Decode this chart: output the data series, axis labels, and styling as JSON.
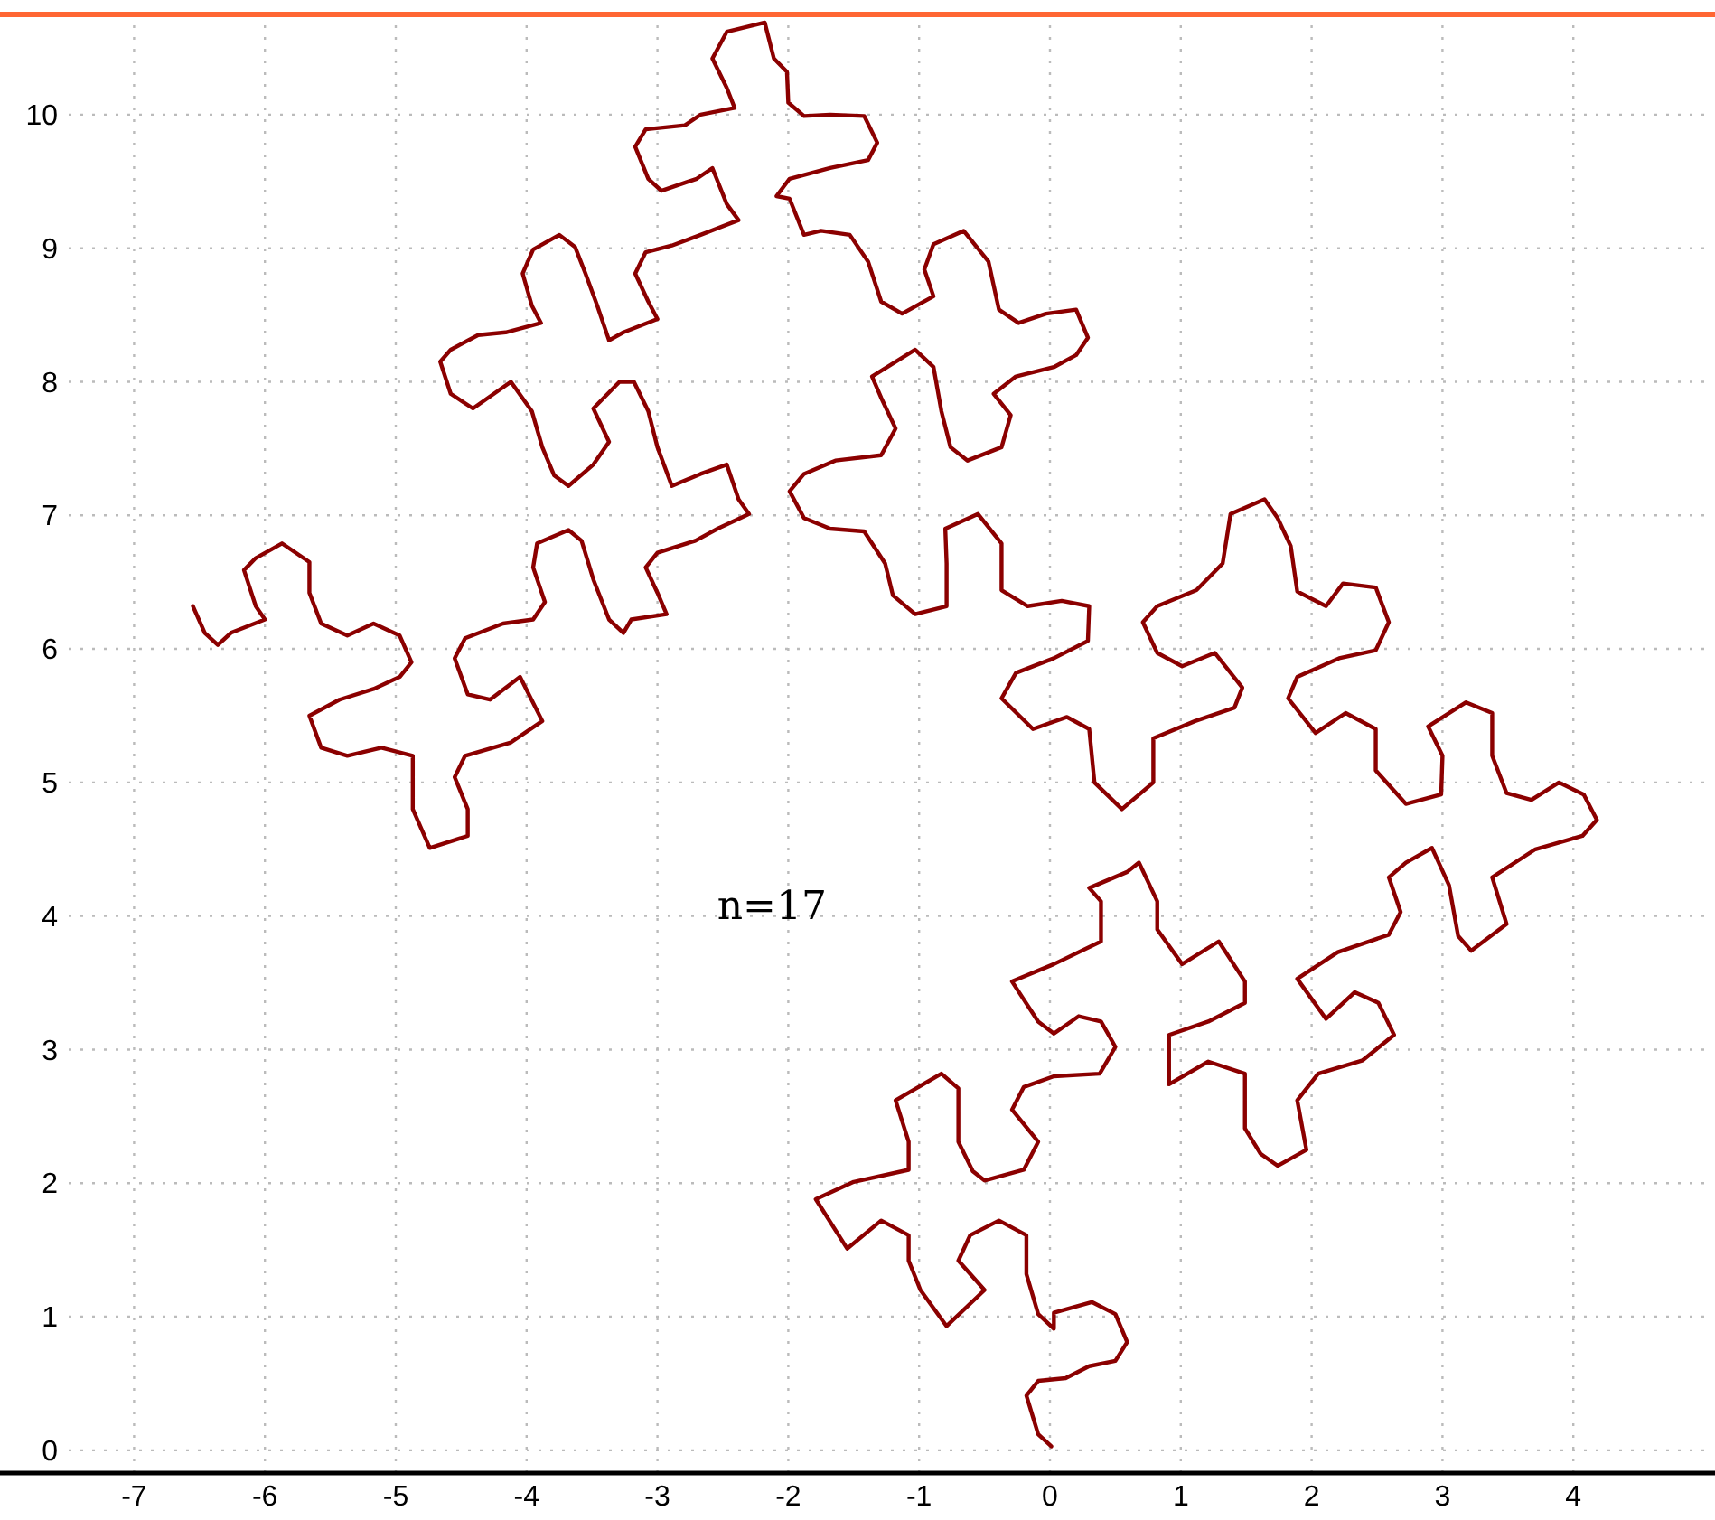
{
  "chart_data": {
    "type": "line",
    "annotations": [
      "n=17"
    ],
    "xlim": [
      -7.5,
      5
    ],
    "ylim": [
      -0.17,
      10.75
    ],
    "xticks": [
      -7,
      -6,
      -5,
      -4,
      -3,
      -2,
      -1,
      0,
      1,
      2,
      3,
      4
    ],
    "yticks": [
      0,
      1,
      2,
      3,
      4,
      5,
      6,
      7,
      8,
      9,
      10
    ],
    "grid": true,
    "series": [
      {
        "color": "#8b0000",
        "x": [
          0.01,
          -0.09,
          -0.18,
          -0.09,
          0.12,
          0.3,
          0.5,
          0.59,
          0.5,
          0.32,
          0.03,
          0.03,
          -0.09,
          -0.18,
          -0.18,
          -0.39,
          -0.61,
          -0.7,
          -0.5,
          -0.79,
          -0.99,
          -1.08,
          -1.08,
          -1.29,
          -1.55,
          -1.79,
          -1.5,
          -1.08,
          -1.08,
          -1.18,
          -0.83,
          -0.7,
          -0.7,
          -0.59,
          -0.5,
          -0.2,
          -0.09,
          -0.29,
          -0.2,
          0.03,
          0.38,
          0.5,
          0.39,
          0.22,
          0.03,
          -0.09,
          -0.29,
          0.03,
          0.39,
          0.39,
          0.3,
          0.59,
          0.68,
          0.82,
          0.82,
          1.01,
          1.29,
          1.49,
          1.49,
          1.21,
          0.91,
          0.91,
          1.21,
          1.49,
          1.49,
          1.61,
          1.74,
          1.96,
          1.89,
          2.05,
          2.39,
          2.63,
          2.51,
          2.33,
          2.11,
          1.89,
          2.2,
          2.59,
          2.68,
          2.59,
          2.72,
          2.92,
          3.05,
          3.12,
          3.22,
          3.49,
          3.38,
          3.71,
          4.07,
          4.18,
          4.08,
          3.89,
          3.68,
          3.49,
          3.38,
          3.38,
          3.18,
          2.89,
          3.0,
          2.99,
          2.72,
          2.49,
          2.49,
          2.26,
          2.03,
          1.82,
          1.89,
          2.21,
          2.49,
          2.59,
          2.49,
          2.24,
          2.11,
          1.89,
          1.84,
          1.74,
          1.64,
          1.38,
          1.32,
          1.12,
          0.82,
          0.71,
          0.82,
          1.01,
          1.26,
          1.47,
          1.41,
          1.11,
          0.79,
          0.79,
          0.55,
          0.34,
          0.3,
          0.13,
          -0.13,
          -0.37,
          -0.26,
          0.03,
          0.29,
          0.3,
          0.09,
          -0.17,
          -0.37,
          -0.37,
          -0.55,
          -0.8,
          -0.79,
          -0.79,
          -1.03,
          -1.2,
          -1.26,
          -1.42,
          -1.68,
          -1.88,
          -1.99,
          -1.88,
          -1.64,
          -1.29,
          -1.18,
          -1.29,
          -1.36,
          -1.03,
          -0.89,
          -0.83,
          -0.76,
          -0.63,
          -0.37,
          -0.3,
          -0.43,
          -0.26,
          0.03,
          0.2,
          0.29,
          0.2,
          -0.03,
          -0.24,
          -0.39,
          -0.47,
          -0.66,
          -0.89,
          -0.96,
          -0.89,
          -1.13,
          -1.29,
          -1.39,
          -1.53,
          -1.75,
          -1.88,
          -1.99,
          -2.09,
          -1.99,
          -1.68,
          -1.39,
          -1.32,
          -1.42,
          -1.68,
          -1.88,
          -2.0,
          -2.01,
          -2.11,
          -2.18,
          -2.47,
          -2.58,
          -2.47,
          -2.41,
          -2.67,
          -2.79,
          -3.09,
          -3.17,
          -3.07,
          -2.97,
          -2.7,
          -2.58,
          -2.47,
          -2.38,
          -2.67,
          -2.89,
          -3.09,
          -3.17,
          -3.07,
          -3.0,
          -3.26,
          -3.37,
          -3.46,
          -3.55,
          -3.63,
          -3.75,
          -3.95,
          -4.03,
          -3.96,
          -3.89,
          -4.16,
          -4.37,
          -4.58,
          -4.66,
          -4.58,
          -4.41,
          -4.12,
          -3.96,
          -3.88,
          -3.79,
          -3.68,
          -3.49,
          -3.37,
          -3.49,
          -3.29,
          -3.18,
          -3.07,
          -3.0,
          -2.89,
          -2.67,
          -2.47,
          -2.38,
          -2.3,
          -2.54,
          -2.71,
          -3.0,
          -3.09,
          -3.0,
          -2.93,
          -3.2,
          -3.26,
          -3.37,
          -3.49,
          -3.58,
          -3.68,
          -3.92,
          -3.95,
          -3.86,
          -3.95,
          -4.18,
          -4.47,
          -4.55,
          -4.45,
          -4.28,
          -4.05,
          -3.88,
          -4.12,
          -4.47,
          -4.55,
          -4.45,
          -4.45,
          -4.74,
          -4.87,
          -4.87,
          -5.11,
          -5.37,
          -5.57,
          -5.66,
          -5.43,
          -5.17,
          -4.97,
          -4.88,
          -4.97,
          -5.17,
          -5.37,
          -5.57,
          -5.66,
          -5.66,
          -5.87,
          -6.07,
          -6.16,
          -6.07,
          -6.0,
          -6.26,
          -6.36,
          -6.46,
          -6.55
        ],
        "values": [
          0.03,
          0.12,
          0.41,
          0.52,
          0.54,
          0.63,
          0.67,
          0.81,
          1.02,
          1.11,
          1.03,
          0.91,
          1.02,
          1.32,
          1.61,
          1.72,
          1.61,
          1.42,
          1.2,
          0.93,
          1.2,
          1.42,
          1.61,
          1.72,
          1.51,
          1.88,
          2.01,
          2.1,
          2.31,
          2.62,
          2.82,
          2.71,
          2.31,
          2.09,
          2.02,
          2.1,
          2.31,
          2.55,
          2.72,
          2.8,
          2.82,
          3.02,
          3.21,
          3.25,
          3.12,
          3.21,
          3.51,
          3.64,
          3.81,
          4.11,
          4.21,
          4.33,
          4.4,
          4.11,
          3.9,
          3.64,
          3.81,
          3.51,
          3.35,
          3.21,
          3.11,
          2.74,
          2.91,
          2.82,
          2.41,
          2.22,
          2.13,
          2.25,
          2.62,
          2.82,
          2.92,
          3.11,
          3.35,
          3.43,
          3.23,
          3.53,
          3.73,
          3.86,
          4.03,
          4.29,
          4.4,
          4.51,
          4.23,
          3.85,
          3.74,
          3.94,
          4.29,
          4.5,
          4.6,
          4.72,
          4.91,
          5.0,
          4.87,
          4.92,
          5.2,
          5.52,
          5.6,
          5.42,
          5.2,
          4.91,
          4.84,
          5.09,
          5.4,
          5.52,
          5.37,
          5.63,
          5.79,
          5.93,
          5.99,
          6.2,
          6.46,
          6.49,
          6.32,
          6.43,
          6.77,
          6.98,
          7.12,
          7.01,
          6.64,
          6.44,
          6.32,
          6.2,
          5.97,
          5.87,
          5.97,
          5.71,
          5.56,
          5.46,
          5.33,
          5.0,
          4.8,
          5.0,
          5.4,
          5.49,
          5.4,
          5.63,
          5.82,
          5.93,
          6.06,
          6.32,
          6.36,
          6.32,
          6.44,
          6.79,
          7.01,
          6.9,
          6.64,
          6.32,
          6.26,
          6.4,
          6.64,
          6.88,
          6.9,
          6.98,
          7.18,
          7.31,
          7.41,
          7.45,
          7.65,
          7.88,
          8.04,
          8.24,
          8.11,
          7.78,
          7.51,
          7.41,
          7.51,
          7.75,
          7.91,
          8.04,
          8.11,
          8.2,
          8.33,
          8.54,
          8.51,
          8.44,
          8.54,
          8.9,
          9.13,
          9.03,
          8.84,
          8.64,
          8.51,
          8.6,
          8.9,
          9.1,
          9.13,
          9.1,
          9.37,
          9.39,
          9.52,
          9.6,
          9.66,
          9.79,
          9.99,
          10.0,
          9.99,
          10.09,
          10.32,
          10.42,
          10.69,
          10.62,
          10.42,
          10.2,
          10.05,
          10.0,
          9.92,
          9.89,
          9.76,
          9.52,
          9.43,
          9.52,
          9.6,
          9.33,
          9.21,
          9.1,
          9.02,
          8.97,
          8.81,
          8.6,
          8.47,
          8.37,
          8.31,
          8.57,
          8.81,
          9.01,
          9.1,
          8.99,
          8.81,
          8.57,
          8.44,
          8.37,
          8.35,
          8.24,
          8.15,
          7.91,
          7.8,
          8.0,
          7.78,
          7.51,
          7.3,
          7.22,
          7.38,
          7.55,
          7.8,
          8.0,
          8.0,
          7.78,
          7.51,
          7.22,
          7.31,
          7.38,
          7.12,
          7.01,
          6.9,
          6.81,
          6.72,
          6.61,
          6.42,
          6.26,
          6.22,
          6.12,
          6.22,
          6.52,
          6.81,
          6.89,
          6.79,
          6.61,
          6.35,
          6.22,
          6.19,
          6.08,
          5.93,
          5.66,
          5.62,
          5.79,
          5.46,
          5.3,
          5.2,
          5.04,
          4.8,
          4.6,
          4.51,
          4.8,
          5.2,
          5.26,
          5.2,
          5.26,
          5.5,
          5.62,
          5.7,
          5.79,
          5.9,
          6.1,
          6.19,
          6.1,
          6.19,
          6.42,
          6.65,
          6.79,
          6.68,
          6.59,
          6.32,
          6.22,
          6.12,
          6.03,
          6.12,
          6.32
        ]
      }
    ]
  }
}
